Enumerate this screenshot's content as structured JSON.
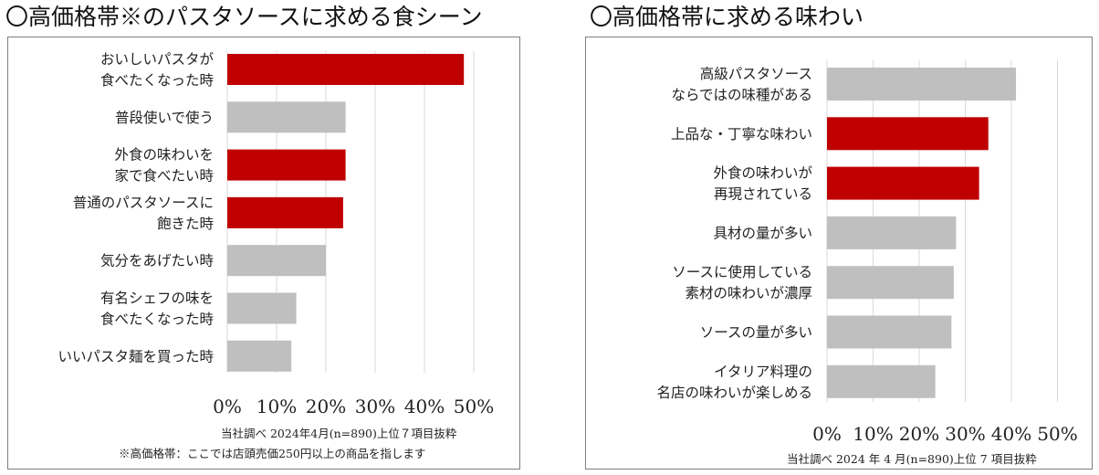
{
  "left": {
    "title": "〇高価格帯※のパスタソースに求める食シーン",
    "source": "当社調べ 2024年4月(n=890)上位７項目抜粋",
    "footnote": "※高価格帯：ここでは店頭売価250円以上の商品を指します"
  },
  "right": {
    "title": "〇高価格帯に求める味わい",
    "source": "当社調べ 2024 年 4 月(n=890)上位 7 項目抜粋"
  },
  "colors": {
    "highlight": "#c00000",
    "base": "#bfbfbf",
    "grid": "#d9d9d9"
  },
  "chart_data": [
    {
      "type": "bar",
      "orientation": "horizontal",
      "categories": [
        [
          "おいしいパスタが",
          "食べたくなった時"
        ],
        [
          "普段使いで使う"
        ],
        [
          "外食の味わいを",
          "家で食べたい時"
        ],
        [
          "普通のパスタソースに",
          "飽きた時"
        ],
        [
          "気分をあげたい時"
        ],
        [
          "有名シェフの味を",
          "食べたくなった時"
        ],
        [
          "いいパスタ麺を買った時"
        ]
      ],
      "values": [
        48,
        24,
        24,
        23.5,
        20,
        14,
        13
      ],
      "highlighted": [
        true,
        false,
        true,
        true,
        false,
        false,
        false
      ],
      "xlim": [
        0,
        50
      ],
      "ticks": [
        0,
        10,
        20,
        30,
        40,
        50
      ],
      "tick_labels": [
        "0%",
        "10%",
        "20%",
        "30%",
        "40%",
        "50%"
      ],
      "grid": true
    },
    {
      "type": "bar",
      "orientation": "horizontal",
      "categories": [
        [
          "高級パスタソース",
          "ならではの味種がある"
        ],
        [
          "上品な・丁寧な味わい"
        ],
        [
          "外食の味わいが",
          "再現されている"
        ],
        [
          "具材の量が多い"
        ],
        [
          "ソースに使用している",
          "素材の味わいが濃厚"
        ],
        [
          "ソースの量が多い"
        ],
        [
          "イタリア料理の",
          "名店の味わいが楽しめる"
        ]
      ],
      "values": [
        41,
        35,
        33,
        28,
        27.5,
        27,
        23.5
      ],
      "highlighted": [
        false,
        true,
        true,
        false,
        false,
        false,
        false
      ],
      "xlim": [
        0,
        50
      ],
      "ticks": [
        0,
        10,
        20,
        30,
        40,
        50
      ],
      "tick_labels": [
        "0%",
        "10%",
        "20%",
        "30%",
        "40%",
        "50%"
      ],
      "grid": true
    }
  ]
}
